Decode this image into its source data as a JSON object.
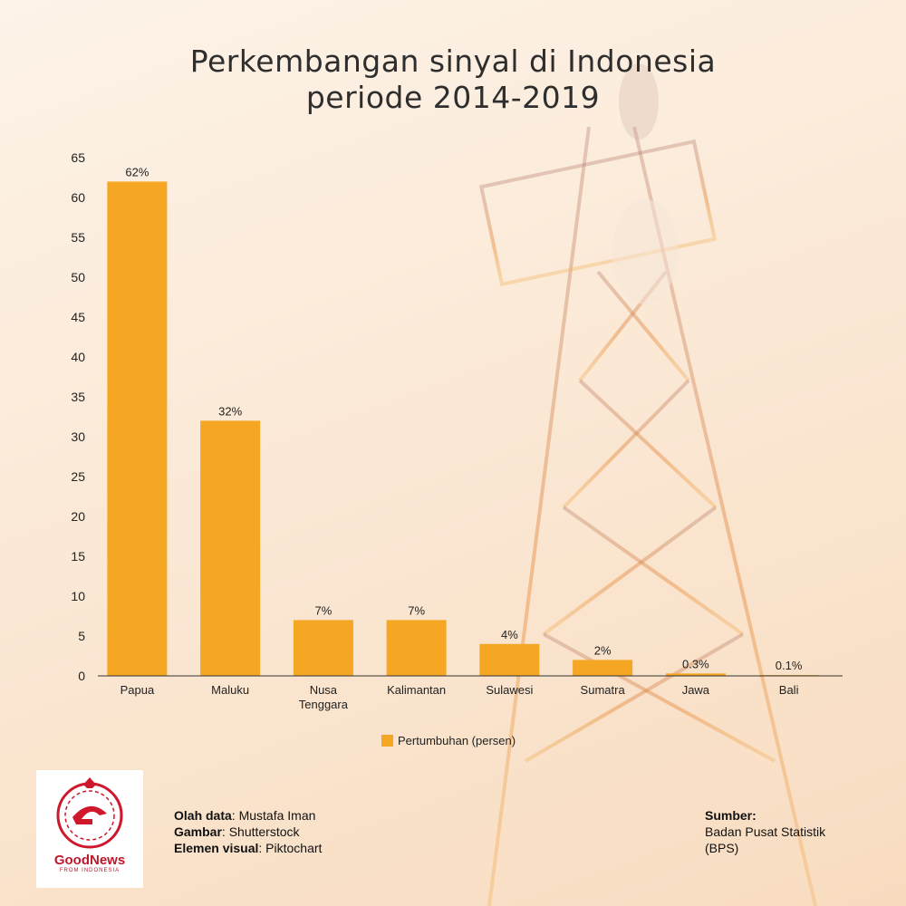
{
  "title_line1": "Perkembangan sinyal di Indonesia",
  "title_line2": "periode 2014-2019",
  "colors": {
    "bar": "#F5A623",
    "axis": "#333333"
  },
  "chart_data": {
    "type": "bar",
    "categories": [
      "Papua",
      "Maluku",
      "Nusa Tenggara",
      "Kalimantan",
      "Sulawesi",
      "Sumatra",
      "Jawa",
      "Bali"
    ],
    "category_lines": [
      [
        "Papua"
      ],
      [
        "Maluku"
      ],
      [
        "Nusa",
        "Tenggara"
      ],
      [
        "Kalimantan"
      ],
      [
        "Sulawesi"
      ],
      [
        "Sumatra"
      ],
      [
        "Jawa"
      ],
      [
        "Bali"
      ]
    ],
    "series": [
      {
        "name": "Pertumbuhan (persen)",
        "values": [
          62,
          32,
          7,
          7,
          4,
          2,
          0.3,
          0.1
        ]
      }
    ],
    "data_labels": [
      "62%",
      "32%",
      "7%",
      "7%",
      "4%",
      "2%",
      "0.3%",
      "0.1%"
    ],
    "yticks": [
      0,
      5,
      10,
      15,
      20,
      25,
      30,
      35,
      40,
      45,
      50,
      55,
      60,
      65
    ],
    "ylim": [
      0,
      65
    ],
    "grid": false,
    "legend_position": "bottom"
  },
  "logo": {
    "main": "GoodNews",
    "sub": "FROM INDONESIA"
  },
  "credits": {
    "data_label": "Olah data",
    "data_value": ": Mustafa Iman",
    "image_label": "Gambar",
    "image_value": ": Shutterstock",
    "visual_label": "Elemen visual",
    "visual_value": ": Piktochart"
  },
  "source": {
    "label": "Sumber:",
    "line1": "Badan Pusat Statistik",
    "line2": "(BPS)"
  }
}
